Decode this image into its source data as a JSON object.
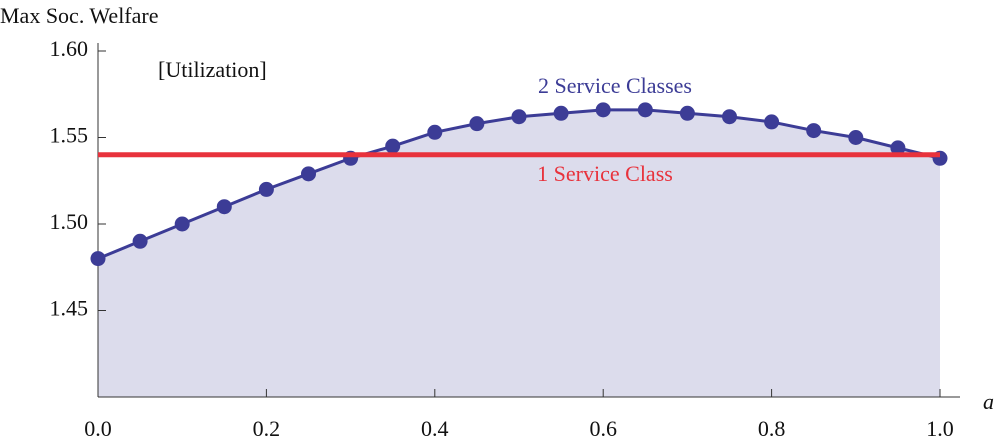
{
  "chart_data": {
    "type": "line",
    "y_label": "Max Soc. Welfare",
    "x_label": "a",
    "annotation": "[Utilization]",
    "x": [
      0,
      0.05,
      0.1,
      0.15,
      0.2,
      0.25,
      0.3,
      0.35,
      0.4,
      0.45,
      0.5,
      0.55,
      0.6,
      0.65,
      0.7,
      0.75,
      0.8,
      0.85,
      0.9,
      0.95,
      1.0
    ],
    "series": [
      {
        "name": "2 Service Classes",
        "color": "#3c3c96",
        "fill": "#dcdcec",
        "markers": true,
        "values": [
          1.48,
          1.49,
          1.5,
          1.51,
          1.52,
          1.529,
          1.538,
          1.545,
          1.553,
          1.558,
          1.562,
          1.564,
          1.566,
          1.566,
          1.564,
          1.562,
          1.559,
          1.554,
          1.55,
          1.544,
          1.538
        ]
      },
      {
        "name": "1 Service Class",
        "color": "#e8323c",
        "markers": false,
        "values": [
          1.54,
          1.54,
          1.54,
          1.54,
          1.54,
          1.54,
          1.54,
          1.54,
          1.54,
          1.54,
          1.54,
          1.54,
          1.54,
          1.54,
          1.54,
          1.54,
          1.54,
          1.54,
          1.54,
          1.54,
          1.54
        ]
      }
    ],
    "xlim": [
      0,
      1.0
    ],
    "ylim": [
      1.4,
      1.6
    ],
    "xticks": [
      {
        "value": 0,
        "label": "0.0"
      },
      0.2,
      0.4,
      0.6,
      0.8,
      {
        "value": 1,
        "label": "1.0"
      }
    ],
    "yticks": [
      {
        "value": 1.45,
        "label": "1.45"
      },
      {
        "value": 1.5,
        "label": "1.50"
      },
      {
        "value": 1.55,
        "label": "1.55"
      },
      {
        "value": 1.6,
        "label": "1.60"
      }
    ]
  }
}
